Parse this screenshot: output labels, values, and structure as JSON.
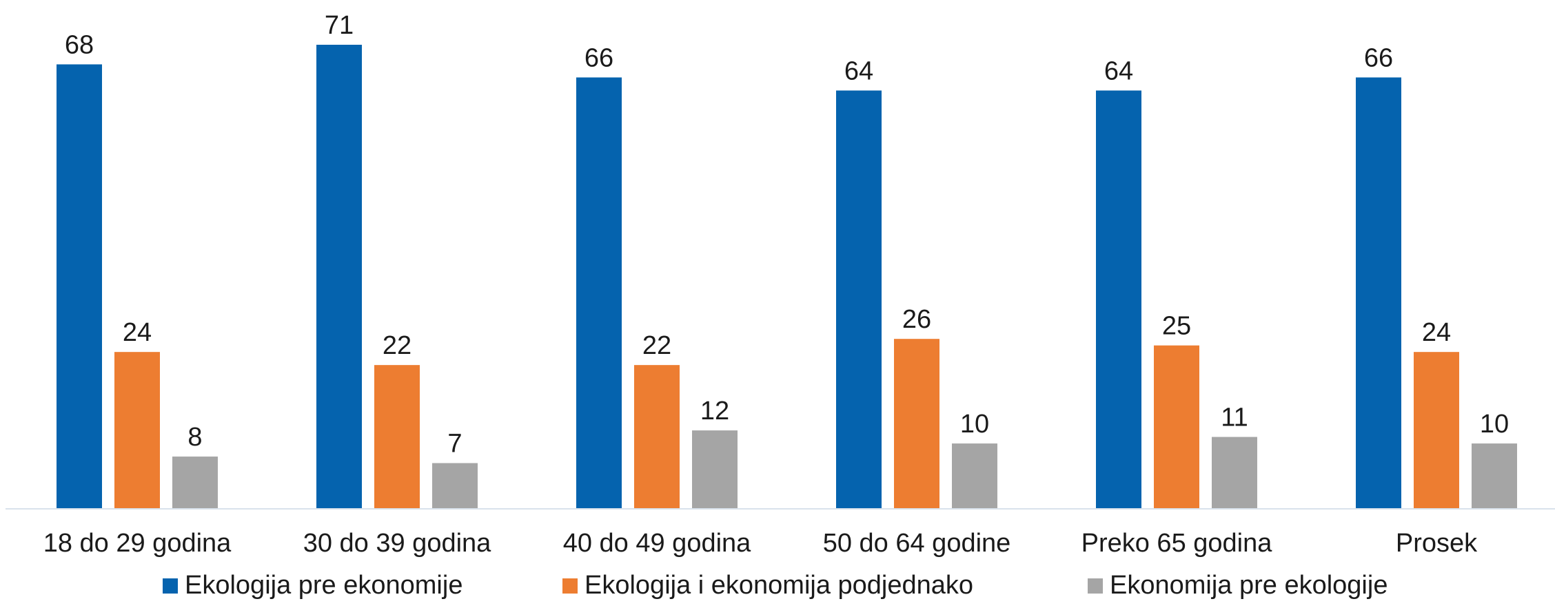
{
  "chart_data": {
    "type": "bar",
    "title": "",
    "xlabel": "",
    "ylabel": "",
    "ylim": [
      0,
      71
    ],
    "grid": false,
    "legend_position": "bottom",
    "categories": [
      "18 do 29 godina",
      "30 do 39 godina",
      "40 do 49 godina",
      "50 do 64 godine",
      "Preko 65 godina",
      "Prosek"
    ],
    "series": [
      {
        "name": "Ekologija pre ekonomije",
        "color": "#0563AE",
        "values": [
          68,
          71,
          66,
          64,
          64,
          66
        ]
      },
      {
        "name": "Ekologija i ekonomija podjednako",
        "color": "#ED7D31",
        "values": [
          24,
          22,
          22,
          26,
          25,
          24
        ]
      },
      {
        "name": "Ekonomija pre ekologije",
        "color": "#A5A5A5",
        "values": [
          8,
          7,
          12,
          10,
          11,
          10
        ]
      }
    ],
    "axis_color": "#D9E2EC"
  }
}
